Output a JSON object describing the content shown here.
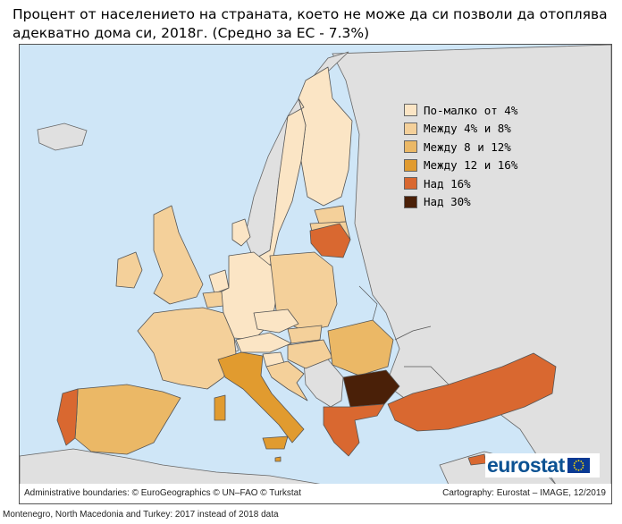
{
  "title": "Процент от населението на страната, което не може да си позволи да отоплява адекватно дома си, 2018г. (Средно за ЕС - 7.3%)",
  "legend": [
    {
      "label": "По-малко от 4%",
      "color": "#fbe5c5"
    },
    {
      "label": "Между 4% и 8%",
      "color": "#f4d09a"
    },
    {
      "label": "Между 8 и 12%",
      "color": "#ebb866"
    },
    {
      "label": "Между 12 и 16%",
      "color": "#e19b2f"
    },
    {
      "label": "Над 16%",
      "color": "#d96830"
    },
    {
      "label": "Над 30%",
      "color": "#4a2008"
    }
  ],
  "credits": {
    "left": "Administrative boundaries: © EuroGeographics © UN–FAO © Turkstat",
    "right": "Cartography: Eurostat – IMAGE, 12/2019"
  },
  "footnote": "Montenegro, North Macedonia and Turkey: 2017 instead of 2018 data",
  "logo": {
    "text": "eurostat"
  },
  "colors": {
    "sea": "#cfe6f7",
    "non_eu": "#e0e0e0"
  }
}
